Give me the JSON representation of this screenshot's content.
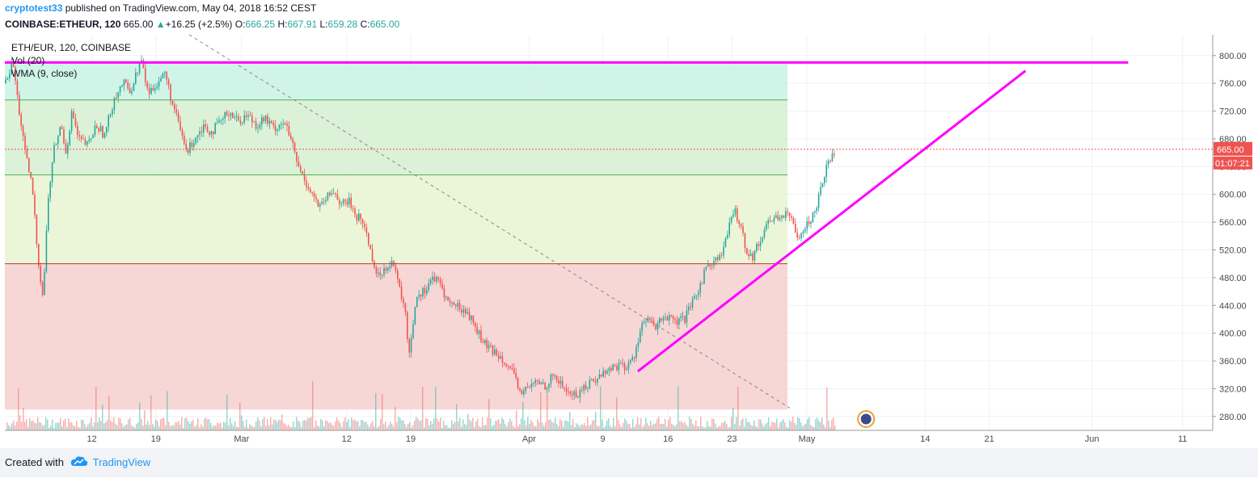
{
  "publish": {
    "user": "cryptotest33",
    "text": " published on TradingView.com, May 04, 2018 16:52 CEST"
  },
  "quote": {
    "symbol": "COINBASE:ETHEUR, 120",
    "last": "665.00",
    "change_arrow": "▲",
    "change": "+16.25 (+2.5%)",
    "o_label": "O:",
    "o": "666.25",
    "h_label": "H:",
    "h": "667.91",
    "l_label": "L:",
    "l": "659.28",
    "c_label": "C:",
    "c": "665.00"
  },
  "legend": {
    "title": "ETH/EUR, 120, COINBASE",
    "vol": "Vol (20)",
    "wma": "WMA (9, close)"
  },
  "footer": {
    "created_with": "Created with",
    "brand": "TradingView"
  },
  "colors": {
    "up": "#26a69a",
    "down": "#ef5350",
    "drawing": "#ff00ff",
    "price_label": "#ef5350",
    "fib_top": "#c8f2e4",
    "fib_mid_upper": "#d5f0d1",
    "fib_mid": "#e8f4d2",
    "fib_bottom": "#f5d0cf"
  },
  "chart_data": {
    "type": "candlestick",
    "symbol": "ETH/EUR",
    "interval": "120",
    "exchange": "COINBASE",
    "ylim": [
      260,
      830
    ],
    "y_ticks": [
      "800.00",
      "760.00",
      "720.00",
      "680.00",
      "640.00",
      "600.00",
      "560.00",
      "520.00",
      "480.00",
      "440.00",
      "400.00",
      "360.00",
      "320.00",
      "280.00"
    ],
    "x_ticks": [
      {
        "label": "12",
        "pos": 0.072
      },
      {
        "label": "19",
        "pos": 0.125
      },
      {
        "label": "Mar",
        "pos": 0.196
      },
      {
        "label": "12",
        "pos": 0.283
      },
      {
        "label": "19",
        "pos": 0.336
      },
      {
        "label": "Apr",
        "pos": 0.434
      },
      {
        "label": "9",
        "pos": 0.495
      },
      {
        "label": "16",
        "pos": 0.549
      },
      {
        "label": "23",
        "pos": 0.602
      },
      {
        "label": "May",
        "pos": 0.664
      },
      {
        "label": "14",
        "pos": 0.762
      },
      {
        "label": "21",
        "pos": 0.815
      },
      {
        "label": "Jun",
        "pos": 0.9
      },
      {
        "label": "11",
        "pos": 0.975
      }
    ],
    "price_path": [
      [
        0.0,
        760
      ],
      [
        0.006,
        790
      ],
      [
        0.01,
        735
      ],
      [
        0.016,
        660
      ],
      [
        0.022,
        610
      ],
      [
        0.027,
        505
      ],
      [
        0.031,
        450
      ],
      [
        0.035,
        590
      ],
      [
        0.04,
        665
      ],
      [
        0.046,
        700
      ],
      [
        0.05,
        660
      ],
      [
        0.055,
        720
      ],
      [
        0.06,
        680
      ],
      [
        0.068,
        670
      ],
      [
        0.075,
        700
      ],
      [
        0.082,
        685
      ],
      [
        0.09,
        740
      ],
      [
        0.097,
        760
      ],
      [
        0.104,
        750
      ],
      [
        0.112,
        795
      ],
      [
        0.118,
        745
      ],
      [
        0.125,
        760
      ],
      [
        0.132,
        775
      ],
      [
        0.138,
        730
      ],
      [
        0.145,
        690
      ],
      [
        0.15,
        660
      ],
      [
        0.156,
        680
      ],
      [
        0.164,
        700
      ],
      [
        0.17,
        690
      ],
      [
        0.176,
        700
      ],
      [
        0.185,
        720
      ],
      [
        0.193,
        705
      ],
      [
        0.2,
        715
      ],
      [
        0.208,
        700
      ],
      [
        0.214,
        710
      ],
      [
        0.222,
        695
      ],
      [
        0.23,
        705
      ],
      [
        0.236,
        680
      ],
      [
        0.242,
        640
      ],
      [
        0.248,
        620
      ],
      [
        0.254,
        600
      ],
      [
        0.26,
        580
      ],
      [
        0.266,
        595
      ],
      [
        0.272,
        605
      ],
      [
        0.278,
        585
      ],
      [
        0.284,
        590
      ],
      [
        0.29,
        570
      ],
      [
        0.296,
        560
      ],
      [
        0.302,
        520
      ],
      [
        0.308,
        480
      ],
      [
        0.314,
        495
      ],
      [
        0.32,
        505
      ],
      [
        0.325,
        470
      ],
      [
        0.33,
        440
      ],
      [
        0.334,
        370
      ],
      [
        0.34,
        455
      ],
      [
        0.346,
        460
      ],
      [
        0.353,
        480
      ],
      [
        0.36,
        470
      ],
      [
        0.366,
        445
      ],
      [
        0.372,
        440
      ],
      [
        0.378,
        435
      ],
      [
        0.384,
        425
      ],
      [
        0.39,
        405
      ],
      [
        0.396,
        385
      ],
      [
        0.402,
        375
      ],
      [
        0.408,
        370
      ],
      [
        0.414,
        360
      ],
      [
        0.42,
        340
      ],
      [
        0.426,
        315
      ],
      [
        0.432,
        320
      ],
      [
        0.44,
        330
      ],
      [
        0.447,
        325
      ],
      [
        0.454,
        340
      ],
      [
        0.46,
        325
      ],
      [
        0.466,
        315
      ],
      [
        0.472,
        310
      ],
      [
        0.478,
        320
      ],
      [
        0.484,
        330
      ],
      [
        0.49,
        335
      ],
      [
        0.496,
        345
      ],
      [
        0.502,
        350
      ],
      [
        0.508,
        355
      ],
      [
        0.514,
        350
      ],
      [
        0.52,
        365
      ],
      [
        0.526,
        410
      ],
      [
        0.532,
        420
      ],
      [
        0.538,
        405
      ],
      [
        0.544,
        425
      ],
      [
        0.55,
        420
      ],
      [
        0.556,
        415
      ],
      [
        0.562,
        420
      ],
      [
        0.568,
        440
      ],
      [
        0.574,
        465
      ],
      [
        0.58,
        495
      ],
      [
        0.586,
        505
      ],
      [
        0.592,
        510
      ],
      [
        0.598,
        545
      ],
      [
        0.603,
        578
      ],
      [
        0.608,
        560
      ],
      [
        0.613,
        520
      ],
      [
        0.618,
        510
      ],
      [
        0.624,
        530
      ],
      [
        0.63,
        560
      ],
      [
        0.636,
        565
      ],
      [
        0.641,
        570
      ],
      [
        0.646,
        570
      ],
      [
        0.652,
        560
      ],
      [
        0.656,
        540
      ],
      [
        0.66,
        550
      ],
      [
        0.665,
        560
      ],
      [
        0.67,
        575
      ],
      [
        0.675,
        615
      ],
      [
        0.68,
        640
      ],
      [
        0.684,
        660
      ],
      [
        0.687,
        665
      ]
    ],
    "horizontal_levels": [
      {
        "price": 790,
        "style": "magenta-thick",
        "x_end": 0.93
      },
      {
        "price": 736,
        "style": "green-thin",
        "x_end": 0.648
      },
      {
        "price": 628,
        "style": "green-thin",
        "x_end": 0.648
      },
      {
        "price": 500,
        "style": "red-thin",
        "x_end": 0.648
      },
      {
        "price": 665,
        "style": "red-dotted",
        "x_end": 1.0
      }
    ],
    "fib_zones": [
      {
        "from": 790,
        "to": 736,
        "color": "fib_top",
        "x_end": 0.648
      },
      {
        "from": 736,
        "to": 628,
        "color": "fib_mid_upper",
        "x_end": 0.648
      },
      {
        "from": 628,
        "to": 500,
        "color": "fib_mid",
        "x_end": 0.648
      },
      {
        "from": 500,
        "to": 290,
        "color": "fib_bottom",
        "x_end": 0.648
      }
    ],
    "trendline": {
      "x1": 0.524,
      "p1": 345,
      "x2": 0.845,
      "p2": 778
    },
    "dashed_line": {
      "x1": 0.148,
      "p1": 835,
      "x2": 0.65,
      "p2": 292
    },
    "last_price_label": "665.00",
    "countdown_label": "01:07:21",
    "events_icon_pos": 0.713
  }
}
